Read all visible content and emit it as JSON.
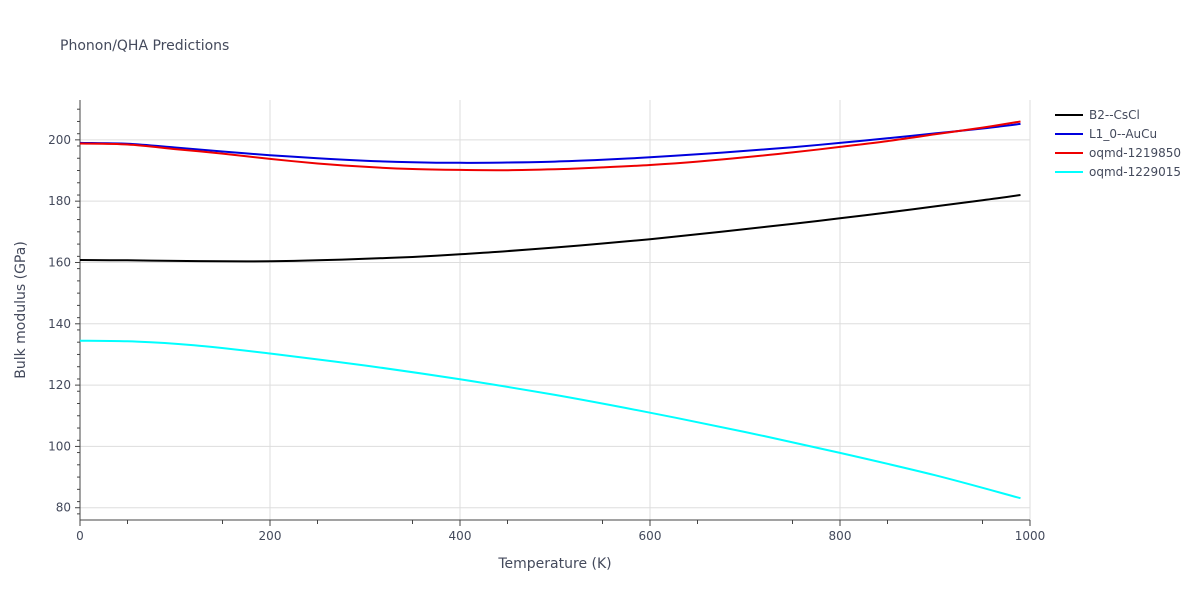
{
  "chart_data": {
    "type": "line",
    "title": "Phonon/QHA Predictions",
    "xlabel": "Temperature (K)",
    "ylabel": "Bulk modulus (GPa)",
    "xlim": [
      0,
      1000
    ],
    "ylim": [
      76,
      213
    ],
    "xticks": [
      0,
      200,
      400,
      600,
      800,
      1000
    ],
    "yticks": [
      80,
      100,
      120,
      140,
      160,
      180,
      200
    ],
    "grid": true,
    "legend_position": "top-right",
    "series": [
      {
        "name": "B2--CsCl",
        "color": "#000000",
        "x": [
          0,
          50,
          100,
          150,
          200,
          250,
          300,
          350,
          400,
          450,
          500,
          550,
          600,
          650,
          700,
          750,
          800,
          850,
          900,
          950,
          990
        ],
        "y": [
          160.8,
          160.7,
          160.5,
          160.4,
          160.4,
          160.7,
          161.2,
          161.8,
          162.7,
          163.7,
          164.9,
          166.2,
          167.6,
          169.2,
          170.9,
          172.6,
          174.4,
          176.3,
          178.3,
          180.3,
          182.0
        ]
      },
      {
        "name": "L1_0--AuCu",
        "color": "#0000dd",
        "x": [
          0,
          50,
          100,
          150,
          200,
          250,
          300,
          350,
          400,
          450,
          500,
          550,
          600,
          650,
          700,
          750,
          800,
          850,
          900,
          950,
          990
        ],
        "y": [
          199.0,
          198.7,
          197.5,
          196.2,
          195.0,
          194.0,
          193.2,
          192.7,
          192.5,
          192.6,
          192.9,
          193.5,
          194.3,
          195.3,
          196.4,
          197.6,
          199.0,
          200.5,
          202.1,
          203.7,
          205.2
        ]
      },
      {
        "name": "oqmd-1219850",
        "color": "#ee0000",
        "x": [
          0,
          50,
          100,
          150,
          200,
          250,
          300,
          350,
          400,
          450,
          500,
          550,
          600,
          650,
          700,
          750,
          800,
          850,
          900,
          950,
          990
        ],
        "y": [
          198.8,
          198.5,
          197.0,
          195.5,
          193.8,
          192.3,
          191.2,
          190.5,
          190.2,
          190.1,
          190.4,
          191.0,
          191.8,
          192.9,
          194.3,
          195.9,
          197.7,
          199.6,
          201.8,
          204.0,
          206.0
        ]
      },
      {
        "name": "oqmd-1229015",
        "color": "#00ffff",
        "x": [
          0,
          60,
          120,
          200,
          300,
          400,
          500,
          600,
          700,
          800,
          900,
          990
        ],
        "y": [
          134.5,
          134.2,
          133.0,
          130.3,
          126.4,
          121.9,
          116.8,
          111.0,
          104.7,
          97.9,
          90.6,
          83.1
        ]
      }
    ]
  }
}
